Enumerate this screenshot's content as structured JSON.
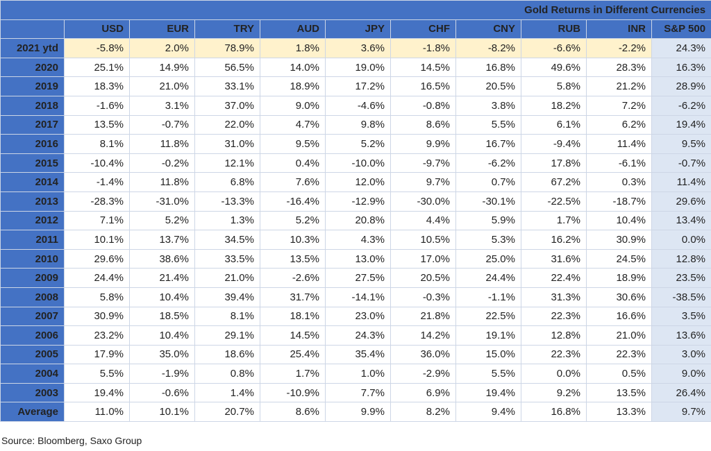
{
  "title": "Gold Returns in Different Currencies",
  "columns": [
    "USD",
    "EUR",
    "TRY",
    "AUD",
    "JPY",
    "CHF",
    "CNY",
    "RUB",
    "INR",
    "S&P 500"
  ],
  "rows": [
    {
      "label": "2021 ytd",
      "values": [
        "-5.8%",
        "2.0%",
        "78.9%",
        "1.8%",
        "3.6%",
        "-1.8%",
        "-8.2%",
        "-6.6%",
        "-2.2%",
        "24.3%"
      ]
    },
    {
      "label": "2020",
      "values": [
        "25.1%",
        "14.9%",
        "56.5%",
        "14.0%",
        "19.0%",
        "14.5%",
        "16.8%",
        "49.6%",
        "28.3%",
        "16.3%"
      ]
    },
    {
      "label": "2019",
      "values": [
        "18.3%",
        "21.0%",
        "33.1%",
        "18.9%",
        "17.2%",
        "16.5%",
        "20.5%",
        "5.8%",
        "21.2%",
        "28.9%"
      ]
    },
    {
      "label": "2018",
      "values": [
        "-1.6%",
        "3.1%",
        "37.0%",
        "9.0%",
        "-4.6%",
        "-0.8%",
        "3.8%",
        "18.2%",
        "7.2%",
        "-6.2%"
      ]
    },
    {
      "label": "2017",
      "values": [
        "13.5%",
        "-0.7%",
        "22.0%",
        "4.7%",
        "9.8%",
        "8.6%",
        "5.5%",
        "6.1%",
        "6.2%",
        "19.4%"
      ]
    },
    {
      "label": "2016",
      "values": [
        "8.1%",
        "11.8%",
        "31.0%",
        "9.5%",
        "5.2%",
        "9.9%",
        "16.7%",
        "-9.4%",
        "11.4%",
        "9.5%"
      ]
    },
    {
      "label": "2015",
      "values": [
        "-10.4%",
        "-0.2%",
        "12.1%",
        "0.4%",
        "-10.0%",
        "-9.7%",
        "-6.2%",
        "17.8%",
        "-6.1%",
        "-0.7%"
      ]
    },
    {
      "label": "2014",
      "values": [
        "-1.4%",
        "11.8%",
        "6.8%",
        "7.6%",
        "12.0%",
        "9.7%",
        "0.7%",
        "67.2%",
        "0.3%",
        "11.4%"
      ]
    },
    {
      "label": "2013",
      "values": [
        "-28.3%",
        "-31.0%",
        "-13.3%",
        "-16.4%",
        "-12.9%",
        "-30.0%",
        "-30.1%",
        "-22.5%",
        "-18.7%",
        "29.6%"
      ]
    },
    {
      "label": "2012",
      "values": [
        "7.1%",
        "5.2%",
        "1.3%",
        "5.2%",
        "20.8%",
        "4.4%",
        "5.9%",
        "1.7%",
        "10.4%",
        "13.4%"
      ]
    },
    {
      "label": "2011",
      "values": [
        "10.1%",
        "13.7%",
        "34.5%",
        "10.3%",
        "4.3%",
        "10.5%",
        "5.3%",
        "16.2%",
        "30.9%",
        "0.0%"
      ]
    },
    {
      "label": "2010",
      "values": [
        "29.6%",
        "38.6%",
        "33.5%",
        "13.5%",
        "13.0%",
        "17.0%",
        "25.0%",
        "31.6%",
        "24.5%",
        "12.8%"
      ]
    },
    {
      "label": "2009",
      "values": [
        "24.4%",
        "21.4%",
        "21.0%",
        "-2.6%",
        "27.5%",
        "20.5%",
        "24.4%",
        "22.4%",
        "18.9%",
        "23.5%"
      ]
    },
    {
      "label": "2008",
      "values": [
        "5.8%",
        "10.4%",
        "39.4%",
        "31.7%",
        "-14.1%",
        "-0.3%",
        "-1.1%",
        "31.3%",
        "30.6%",
        "-38.5%"
      ]
    },
    {
      "label": "2007",
      "values": [
        "30.9%",
        "18.5%",
        "8.1%",
        "18.1%",
        "23.0%",
        "21.8%",
        "22.5%",
        "22.3%",
        "16.6%",
        "3.5%"
      ]
    },
    {
      "label": "2006",
      "values": [
        "23.2%",
        "10.4%",
        "29.1%",
        "14.5%",
        "24.3%",
        "14.2%",
        "19.1%",
        "12.8%",
        "21.0%",
        "13.6%"
      ]
    },
    {
      "label": "2005",
      "values": [
        "17.9%",
        "35.0%",
        "18.6%",
        "25.4%",
        "35.4%",
        "36.0%",
        "15.0%",
        "22.3%",
        "22.3%",
        "3.0%"
      ]
    },
    {
      "label": "2004",
      "values": [
        "5.5%",
        "-1.9%",
        "0.8%",
        "1.7%",
        "1.0%",
        "-2.9%",
        "5.5%",
        "0.0%",
        "0.5%",
        "9.0%"
      ]
    },
    {
      "label": "2003",
      "values": [
        "19.4%",
        "-0.6%",
        "1.4%",
        "-10.9%",
        "7.7%",
        "6.9%",
        "19.4%",
        "9.2%",
        "13.5%",
        "26.4%"
      ]
    },
    {
      "label": "Average",
      "values": [
        "11.0%",
        "10.1%",
        "20.7%",
        "8.6%",
        "9.9%",
        "8.2%",
        "9.4%",
        "16.8%",
        "13.3%",
        "9.7%"
      ]
    }
  ],
  "source": "Source: Bloomberg, Saxo Group",
  "colors": {
    "header_bg": "#4472c4",
    "header_text": "#ffffff",
    "ytd_row_bg": "#fff2cc",
    "sp500_col_bg": "#dde6f3"
  },
  "chart_data": {
    "type": "table",
    "title": "Gold Returns in Different Currencies",
    "columns": [
      "USD",
      "EUR",
      "TRY",
      "AUD",
      "JPY",
      "CHF",
      "CNY",
      "RUB",
      "INR",
      "S&P 500"
    ],
    "row_labels": [
      "2021 ytd",
      "2020",
      "2019",
      "2018",
      "2017",
      "2016",
      "2015",
      "2014",
      "2013",
      "2012",
      "2011",
      "2010",
      "2009",
      "2008",
      "2007",
      "2006",
      "2005",
      "2004",
      "2003",
      "Average"
    ],
    "units": "%",
    "values": [
      [
        -5.8,
        2.0,
        78.9,
        1.8,
        3.6,
        -1.8,
        -8.2,
        -6.6,
        -2.2,
        24.3
      ],
      [
        25.1,
        14.9,
        56.5,
        14.0,
        19.0,
        14.5,
        16.8,
        49.6,
        28.3,
        16.3
      ],
      [
        18.3,
        21.0,
        33.1,
        18.9,
        17.2,
        16.5,
        20.5,
        5.8,
        21.2,
        28.9
      ],
      [
        -1.6,
        3.1,
        37.0,
        9.0,
        -4.6,
        -0.8,
        3.8,
        18.2,
        7.2,
        -6.2
      ],
      [
        13.5,
        -0.7,
        22.0,
        4.7,
        9.8,
        8.6,
        5.5,
        6.1,
        6.2,
        19.4
      ],
      [
        8.1,
        11.8,
        31.0,
        9.5,
        5.2,
        9.9,
        16.7,
        -9.4,
        11.4,
        9.5
      ],
      [
        -10.4,
        -0.2,
        12.1,
        0.4,
        -10.0,
        -9.7,
        -6.2,
        17.8,
        -6.1,
        -0.7
      ],
      [
        -1.4,
        11.8,
        6.8,
        7.6,
        12.0,
        9.7,
        0.7,
        67.2,
        0.3,
        11.4
      ],
      [
        -28.3,
        -31.0,
        -13.3,
        -16.4,
        -12.9,
        -30.0,
        -30.1,
        -22.5,
        -18.7,
        29.6
      ],
      [
        7.1,
        5.2,
        1.3,
        5.2,
        20.8,
        4.4,
        5.9,
        1.7,
        10.4,
        13.4
      ],
      [
        10.1,
        13.7,
        34.5,
        10.3,
        4.3,
        10.5,
        5.3,
        16.2,
        30.9,
        0.0
      ],
      [
        29.6,
        38.6,
        33.5,
        13.5,
        13.0,
        17.0,
        25.0,
        31.6,
        24.5,
        12.8
      ],
      [
        24.4,
        21.4,
        21.0,
        -2.6,
        27.5,
        20.5,
        24.4,
        22.4,
        18.9,
        23.5
      ],
      [
        5.8,
        10.4,
        39.4,
        31.7,
        -14.1,
        -0.3,
        -1.1,
        31.3,
        30.6,
        -38.5
      ],
      [
        30.9,
        18.5,
        8.1,
        18.1,
        23.0,
        21.8,
        22.5,
        22.3,
        16.6,
        3.5
      ],
      [
        23.2,
        10.4,
        29.1,
        14.5,
        24.3,
        14.2,
        19.1,
        12.8,
        21.0,
        13.6
      ],
      [
        17.9,
        35.0,
        18.6,
        25.4,
        35.4,
        36.0,
        15.0,
        22.3,
        22.3,
        3.0
      ],
      [
        5.5,
        -1.9,
        0.8,
        1.7,
        1.0,
        -2.9,
        5.5,
        0.0,
        0.5,
        9.0
      ],
      [
        19.4,
        -0.6,
        1.4,
        -10.9,
        7.7,
        6.9,
        19.4,
        9.2,
        13.5,
        26.4
      ],
      [
        11.0,
        10.1,
        20.7,
        8.6,
        9.9,
        8.2,
        9.4,
        16.8,
        13.3,
        9.7
      ]
    ]
  }
}
